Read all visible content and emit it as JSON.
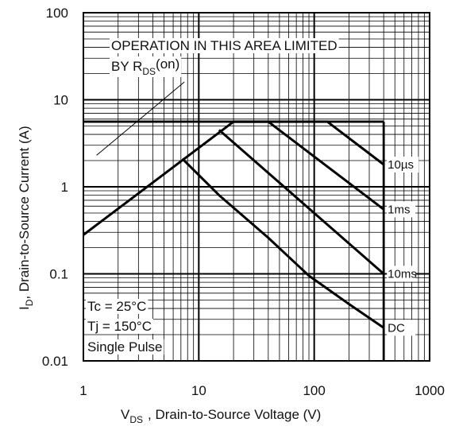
{
  "chart_data": {
    "type": "line",
    "xscale": "log",
    "yscale": "log",
    "xlim": [
      1,
      1000
    ],
    "ylim": [
      0.01,
      100
    ],
    "grid": true,
    "x_ticks": [
      "1",
      "10",
      "100",
      "1000"
    ],
    "y_ticks": [
      "100",
      "10",
      "1",
      "0.1",
      "0.01"
    ],
    "xlabel": {
      "main": "V",
      "sub": "DS",
      "rest": ", Drain-to-Source Voltage (V)"
    },
    "ylabel": {
      "main": "I",
      "sub": "D",
      "rest": ",  Drain-to-Source Current (A)"
    },
    "annotation": {
      "line1": "OPERATION IN THIS AREA LIMITED",
      "line2_main": "BY R",
      "line2_sub": "DS",
      "line2_tail": "(on)"
    },
    "conditions": [
      "Tc = 25°C",
      "Tj = 150°C",
      "Single Pulse"
    ],
    "current_limit": 5.6,
    "voltage_limit": 400,
    "series": [
      {
        "name": "10µs",
        "x": [
          20,
          130,
          400
        ],
        "y": [
          5.6,
          5.6,
          1.8
        ]
      },
      {
        "name": "1ms",
        "x": [
          1,
          20,
          40,
          400
        ],
        "y": [
          0.28,
          5.6,
          5.6,
          0.55
        ]
      },
      {
        "name": "10ms",
        "x": [
          15,
          400
        ],
        "y": [
          4.5,
          0.1
        ]
      },
      {
        "name": "DC",
        "x": [
          7.2,
          15,
          40,
          90,
          200,
          400
        ],
        "y": [
          2.1,
          0.8,
          0.26,
          0.095,
          0.045,
          0.024
        ]
      }
    ],
    "rds_line": {
      "x": [
        1.3,
        7.5
      ],
      "y": [
        2.3,
        16
      ]
    }
  }
}
